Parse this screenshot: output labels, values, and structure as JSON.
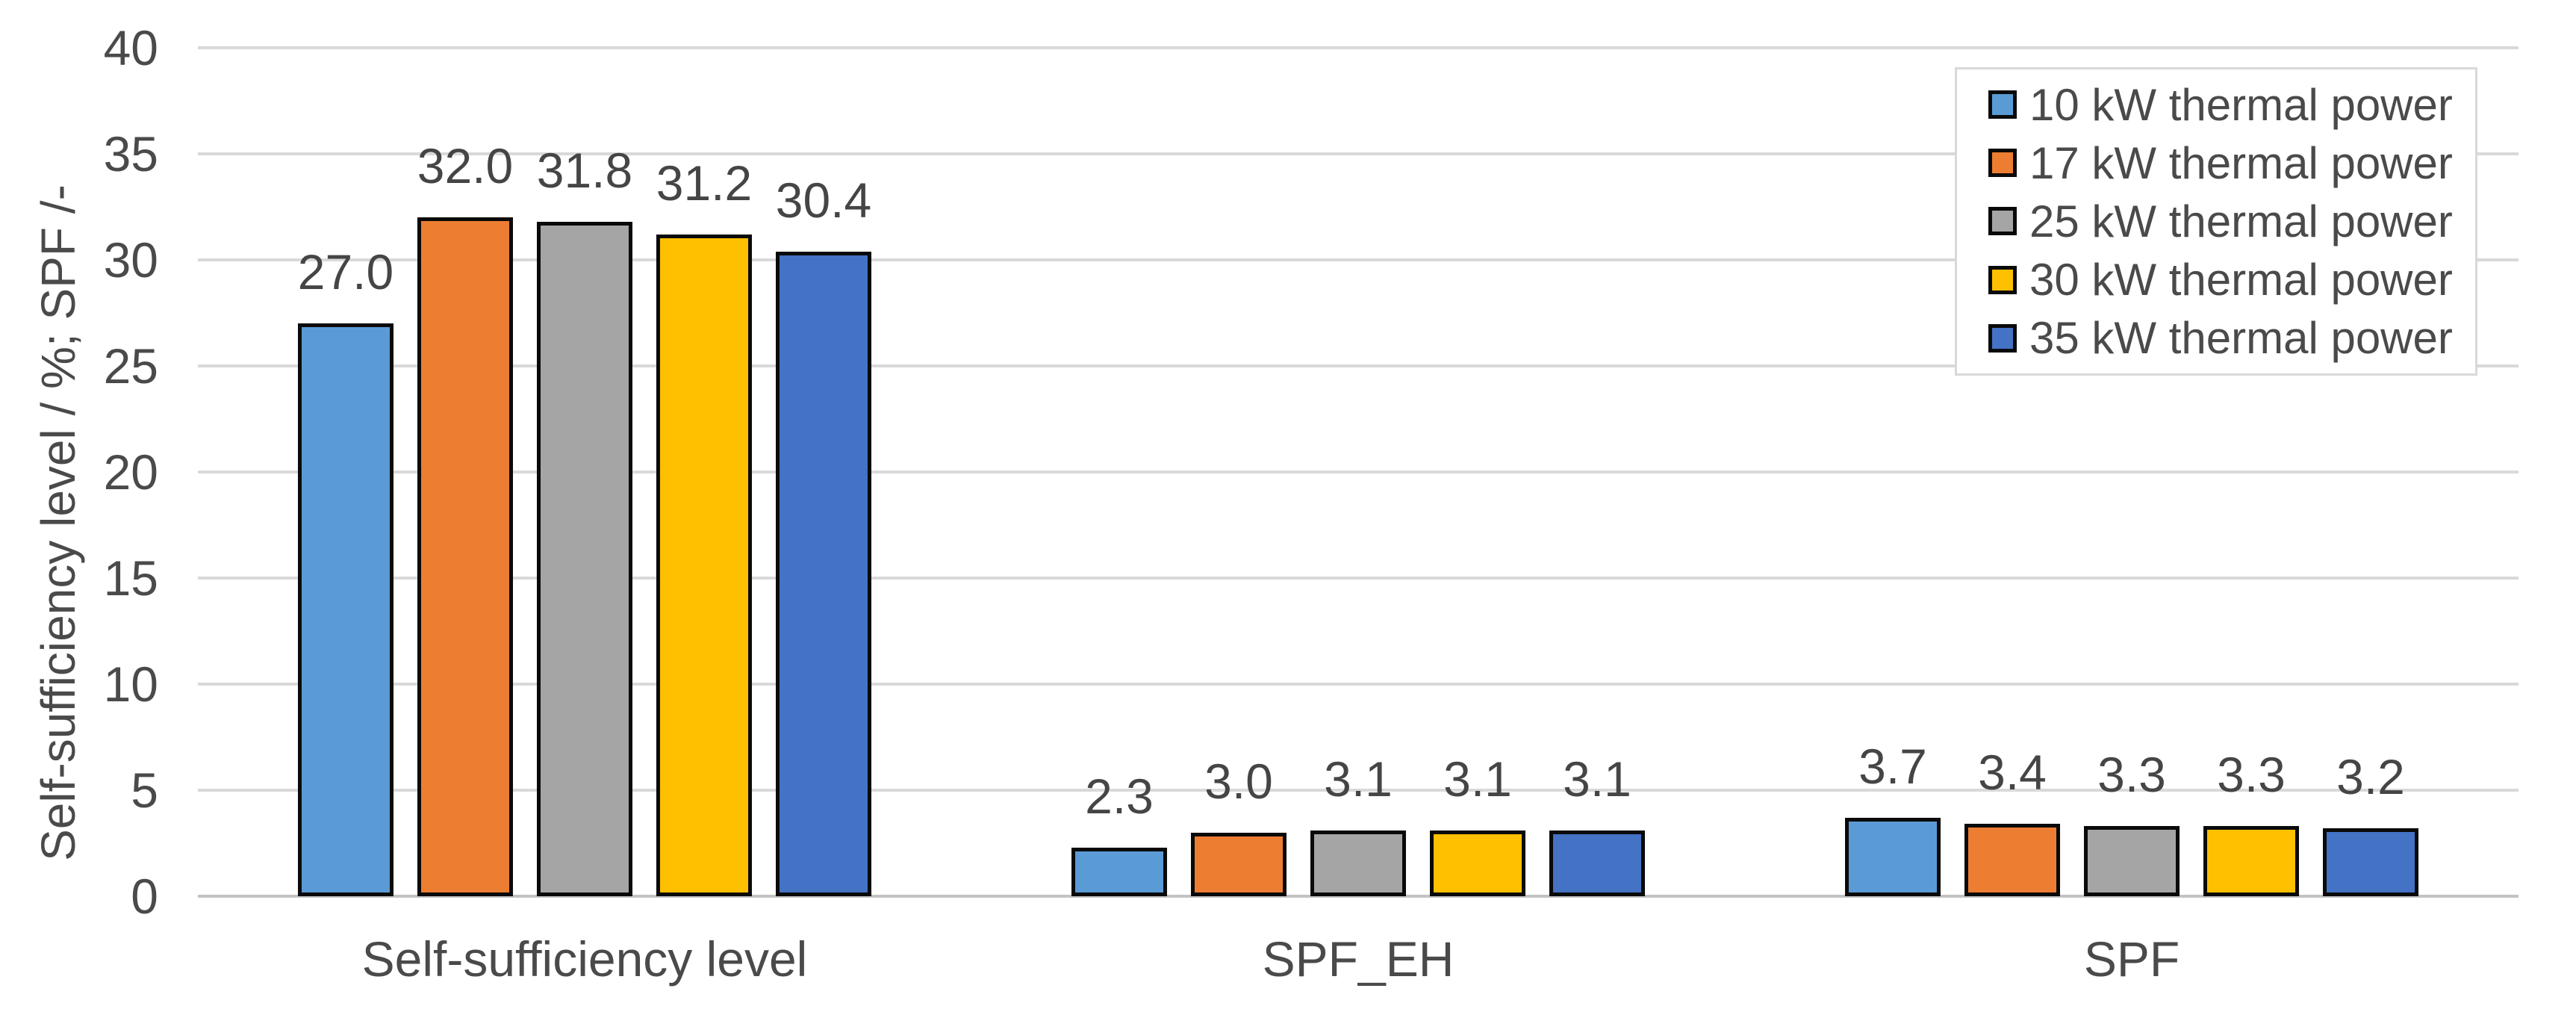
{
  "chart_data": {
    "type": "bar",
    "title": "",
    "ylabel": "Self-sufficiency level / %; SPF /-",
    "xlabel": "",
    "ylim": [
      0,
      40
    ],
    "ytick_step": 5,
    "ytick_labels": [
      "0",
      "5",
      "10",
      "15",
      "20",
      "25",
      "30",
      "35",
      "40"
    ],
    "grid": true,
    "legend_position": "top-right",
    "value_label_decimals": 1,
    "categories": [
      "Self-sufficiency level",
      "SPF_EH",
      "SPF"
    ],
    "series": [
      {
        "name": "10 kW thermal power",
        "color": "#5B9BD5",
        "values": [
          27.0,
          2.3,
          3.7
        ]
      },
      {
        "name": "17 kW thermal power",
        "color": "#ED7D31",
        "values": [
          32.0,
          3.0,
          3.4
        ]
      },
      {
        "name": "25 kW thermal power",
        "color": "#A5A5A5",
        "values": [
          31.8,
          3.1,
          3.3
        ]
      },
      {
        "name": "30 kW thermal power",
        "color": "#FFC000",
        "values": [
          31.2,
          3.1,
          3.3
        ]
      },
      {
        "name": "35 kW thermal power",
        "color": "#4472C4",
        "values": [
          30.4,
          3.1,
          3.2
        ]
      }
    ],
    "colors": {
      "bar_border": "#0a0a0a",
      "gridline": "#d9d9d9",
      "axis_line": "#c3c3c3",
      "text": "#4a4a4a",
      "legend_border": "#d9d9d9",
      "background": "#ffffff"
    }
  }
}
